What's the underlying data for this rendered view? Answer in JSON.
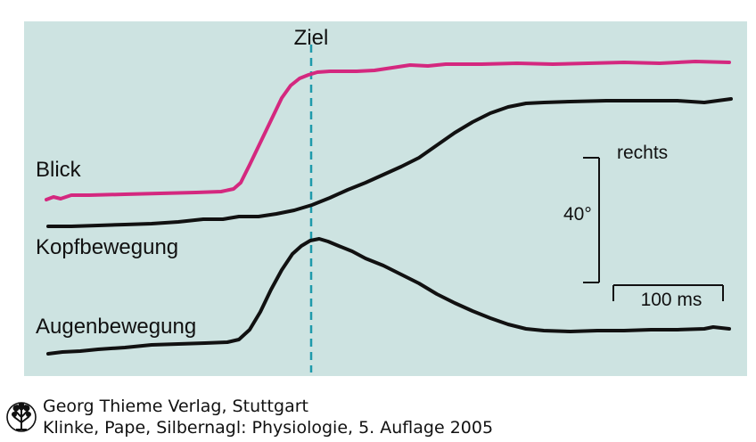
{
  "figure": {
    "target_label": "Ziel",
    "scale_vertical_label": "40°",
    "scale_direction_label": "rechts",
    "scale_time_label": "100 ms",
    "colors": {
      "background": "#cde3e1",
      "gaze_trace": "#d4287f",
      "head_trace": "#111111",
      "eye_trace": "#111111",
      "target_line": "#1e9aab"
    },
    "traces": [
      {
        "id": "gaze",
        "label": "Blick"
      },
      {
        "id": "head",
        "label": "Kopfbewegung"
      },
      {
        "id": "eye",
        "label": "Augenbewegung"
      }
    ]
  },
  "credit": {
    "publisher": "Georg Thieme Verlag, Stuttgart",
    "citation": "Klinke, Pape, Silbernagl: Physiologie, 5. Auflage 2005",
    "logo_icon": "thieme-tree-logo-icon"
  }
}
